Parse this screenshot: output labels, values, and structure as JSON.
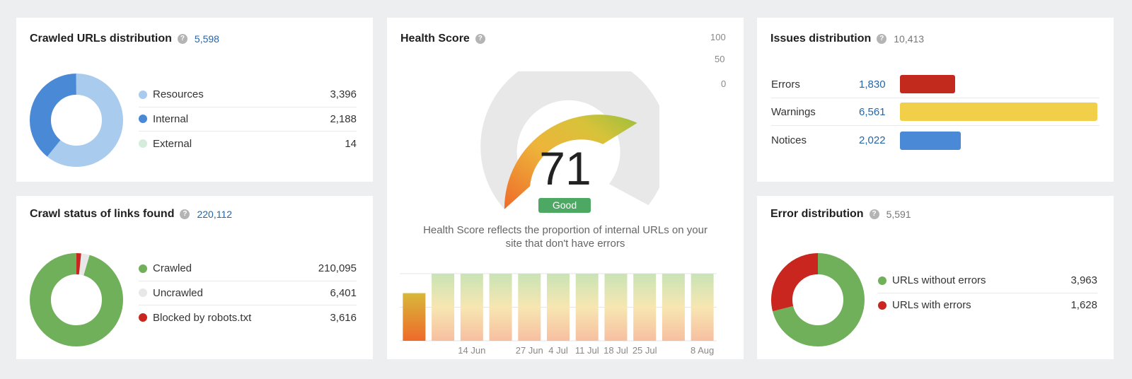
{
  "crawled_urls": {
    "title": "Crawled URLs distribution",
    "total": "5,598",
    "items": [
      {
        "label": "Resources",
        "value": "3,396",
        "color": "#a9cbed"
      },
      {
        "label": "Internal",
        "value": "2,188",
        "color": "#4a89d6"
      },
      {
        "label": "External",
        "value": "14",
        "color": "#d5ecdc"
      }
    ]
  },
  "crawl_status": {
    "title": "Crawl status of links found",
    "total": "220,112",
    "items": [
      {
        "label": "Crawled",
        "value": "210,095",
        "color": "#70b05a"
      },
      {
        "label": "Uncrawled",
        "value": "6,401",
        "color": "#e8e8e8"
      },
      {
        "label": "Blocked by robots.txt",
        "value": "3,616",
        "color": "#c8261e"
      }
    ]
  },
  "health": {
    "title": "Health Score",
    "score": "71",
    "rating": "Good",
    "description_line1": "Health Score reflects the proportion of internal URLs on your",
    "description_line2": "site that don't have errors"
  },
  "issues": {
    "title": "Issues distribution",
    "total": "10,413",
    "items": [
      {
        "label": "Errors",
        "value": "1,830",
        "color": "#c22a1e"
      },
      {
        "label": "Warnings",
        "value": "6,561",
        "color": "#f2cf48"
      },
      {
        "label": "Notices",
        "value": "2,022",
        "color": "#4a89d6"
      }
    ]
  },
  "error_dist": {
    "title": "Error distribution",
    "total": "5,591",
    "items": [
      {
        "label": "URLs without errors",
        "value": "3,963",
        "color": "#70b05a"
      },
      {
        "label": "URLs with errors",
        "value": "1,628",
        "color": "#c8261e"
      }
    ]
  },
  "chart_data": {
    "type": "bar",
    "categories": [
      "",
      "",
      "14 Jun",
      "",
      "27 Jun",
      "4 Jul",
      "11 Jul",
      "18 Jul",
      "25 Jul",
      "",
      "8 Aug"
    ],
    "values": [
      71,
      100,
      100,
      100,
      100,
      100,
      100,
      100,
      100,
      100,
      100
    ],
    "ylim": [
      0,
      100
    ],
    "yticks": [
      "100",
      "50",
      "0"
    ],
    "grid": true
  }
}
